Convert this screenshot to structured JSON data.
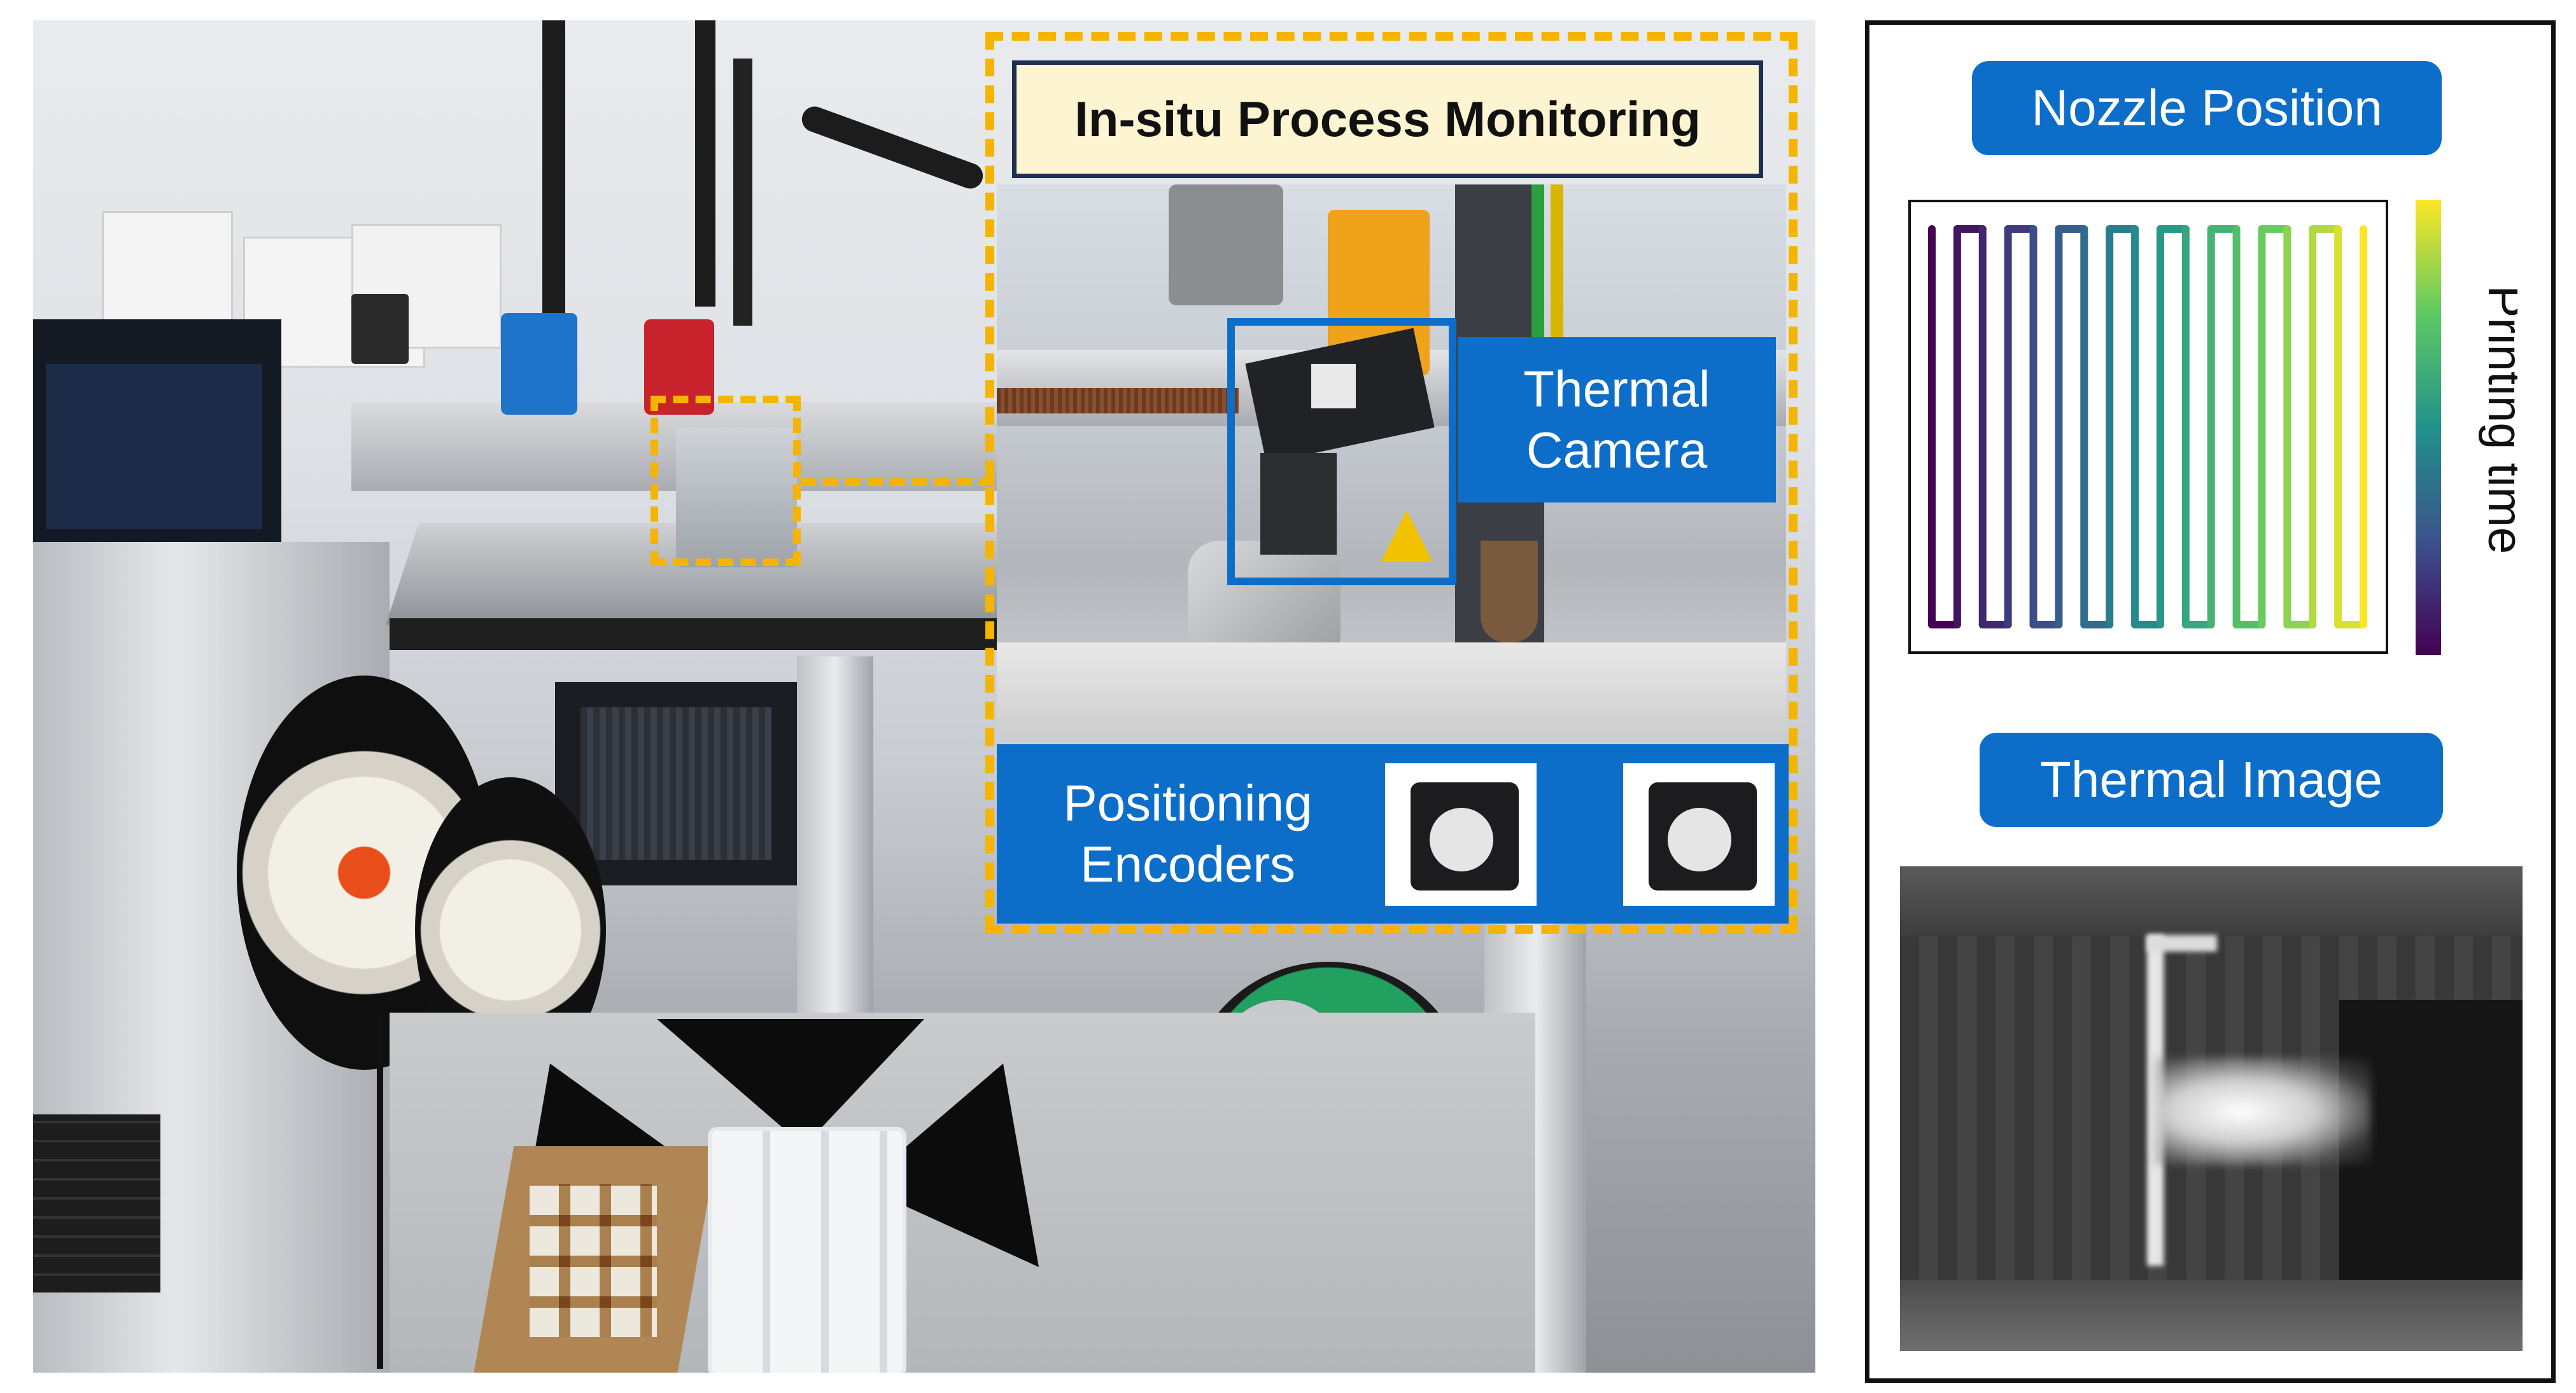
{
  "callout": {
    "title": "In-situ Process Monitoring",
    "thermal_camera_label": "Thermal\nCamera",
    "positioning_encoders_label": "Positioning\nEncoders"
  },
  "right_panel": {
    "nozzle_position_label": "Nozzle Position",
    "thermal_image_label": "Thermal Image",
    "colorbar_label": "Printing time"
  },
  "colors": {
    "accent_blue": "#0d6ec9",
    "dashed_yellow": "#f5b400",
    "title_background": "#fdf4d2"
  }
}
